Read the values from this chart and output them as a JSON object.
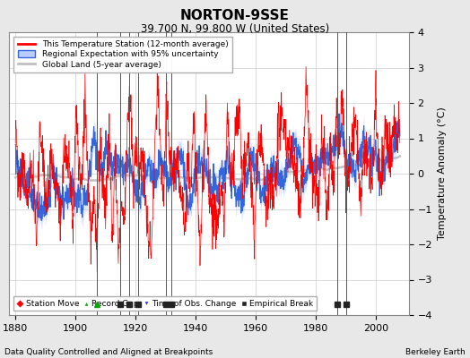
{
  "title": "NORTON-9SSE",
  "subtitle": "39.700 N, 99.800 W (United States)",
  "xlabel_left": "Data Quality Controlled and Aligned at Breakpoints",
  "xlabel_right": "Berkeley Earth",
  "ylabel": "Temperature Anomaly (°C)",
  "xlim": [
    1878,
    2011
  ],
  "ylim": [
    -4,
    4
  ],
  "yticks": [
    -4,
    -3,
    -2,
    -1,
    0,
    1,
    2,
    3,
    4
  ],
  "xticks": [
    1880,
    1900,
    1920,
    1940,
    1960,
    1980,
    2000
  ],
  "bg_color": "#e8e8e8",
  "plot_bg_color": "#ffffff",
  "record_gaps": [
    1907
  ],
  "obs_changes": [],
  "empirical_breaks": [
    1915,
    1918,
    1921,
    1930,
    1932,
    1987,
    1990
  ],
  "station_moves": [],
  "random_seed": 7,
  "start_year": 1880,
  "end_year": 2008,
  "n_years": 128
}
